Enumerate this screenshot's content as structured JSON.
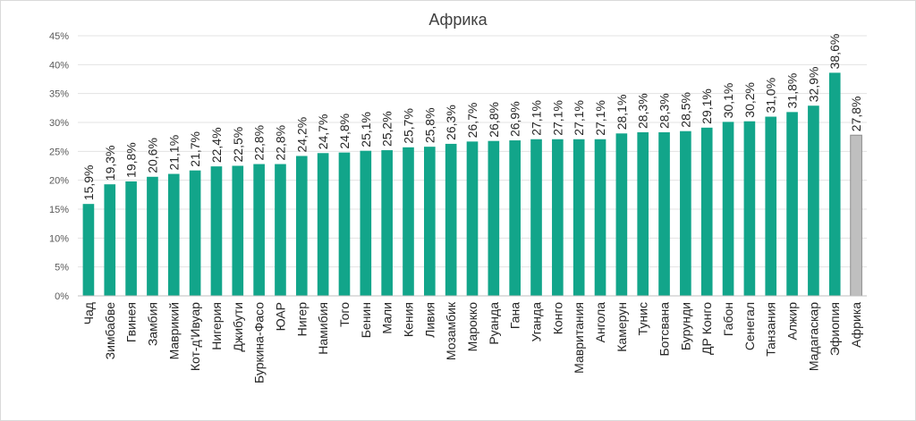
{
  "chart_data": {
    "type": "bar",
    "title": "Африка",
    "xlabel": "",
    "ylabel": "",
    "ylim": [
      0,
      45
    ],
    "yticks": [
      0,
      5,
      10,
      15,
      20,
      25,
      30,
      35,
      40,
      45
    ],
    "ytick_labels": [
      "0%",
      "5%",
      "10%",
      "15%",
      "20%",
      "25%",
      "30%",
      "35%",
      "40%",
      "45%"
    ],
    "grid": true,
    "legend": "none",
    "colors": {
      "bar": "#12a58a",
      "highlight": "#bfbfbf",
      "highlight_border": "#8c8c8c"
    },
    "categories": [
      "Чад",
      "Зимбабве",
      "Гвинея",
      "Замбия",
      "Маврикий",
      "Кот-д'Ивуар",
      "Нигерия",
      "Джибути",
      "Буркина-Фасо",
      "ЮАР",
      "Нигер",
      "Намибия",
      "Того",
      "Бенин",
      "Мали",
      "Кения",
      "Ливия",
      "Мозамбик",
      "Марокко",
      "Руанда",
      "Гана",
      "Уганда",
      "Конго",
      "Мавритания",
      "Ангола",
      "Камерун",
      "Тунис",
      "Ботсвана",
      "Бурунди",
      "ДР Конго",
      "Габон",
      "Сенегал",
      "Танзания",
      "Алжир",
      "Мадагаскар",
      "Эфиопия",
      "Африка"
    ],
    "values": [
      15.9,
      19.3,
      19.8,
      20.6,
      21.1,
      21.7,
      22.4,
      22.5,
      22.8,
      22.8,
      24.2,
      24.7,
      24.8,
      25.1,
      25.2,
      25.7,
      25.8,
      26.3,
      26.7,
      26.8,
      26.9,
      27.1,
      27.1,
      27.1,
      27.1,
      28.1,
      28.3,
      28.3,
      28.5,
      29.1,
      30.1,
      30.2,
      31.0,
      31.8,
      32.9,
      38.6,
      27.8
    ],
    "data_labels": [
      "15,9%",
      "19,3%",
      "19,8%",
      "20,6%",
      "21,1%",
      "21,7%",
      "22,4%",
      "22,5%",
      "22,8%",
      "22,8%",
      "24,2%",
      "24,7%",
      "24,8%",
      "25,1%",
      "25,2%",
      "25,7%",
      "25,8%",
      "26,3%",
      "26,7%",
      "26,8%",
      "26,9%",
      "27,1%",
      "27,1%",
      "27,1%",
      "27,1%",
      "28,1%",
      "28,3%",
      "28,3%",
      "28,5%",
      "29,1%",
      "30,1%",
      "30,2%",
      "31,0%",
      "31,8%",
      "32,9%",
      "38,6%",
      "27,8%"
    ],
    "highlight_category": "Африка"
  }
}
